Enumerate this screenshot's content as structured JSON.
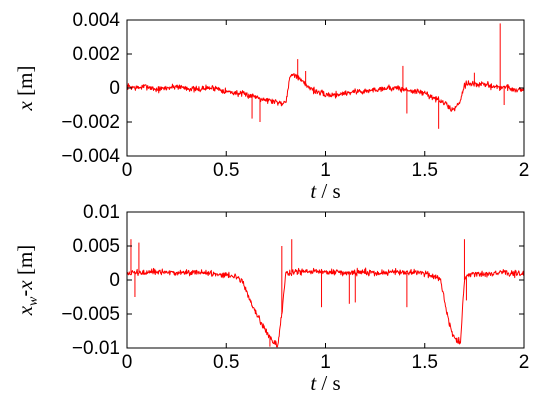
{
  "colors": {
    "series": "#ff0000",
    "axis": "#000000",
    "background": "#ffffff"
  },
  "chart_data": [
    {
      "type": "line",
      "title": "",
      "xlabel": {
        "var": "t",
        "sep": " / ",
        "unit": "s"
      },
      "ylabel": {
        "var": "x",
        "unit": " [m]"
      },
      "xlim": [
        0,
        2
      ],
      "ylim": [
        -0.004,
        0.004
      ],
      "xticks": [
        0,
        0.5,
        1,
        1.5,
        2
      ],
      "xtick_labels": [
        "0",
        "0.5",
        "1",
        "1.5",
        "2"
      ],
      "yticks": [
        0.004,
        0.002,
        0,
        -0.002,
        -0.004
      ],
      "ytick_labels": [
        "0.004",
        "0.002",
        "0",
        "−0.002",
        "−0.004"
      ],
      "grid": false,
      "series": [
        {
          "x": [
            0,
            0.05,
            0.1,
            0.15,
            0.2,
            0.25,
            0.3,
            0.35,
            0.4,
            0.45,
            0.5,
            0.55,
            0.6,
            0.65,
            0.7,
            0.75,
            0.78,
            0.8,
            0.82,
            0.84,
            0.86,
            0.9,
            0.95,
            1.0,
            1.05,
            1.1,
            1.15,
            1.2,
            1.25,
            1.3,
            1.35,
            1.4,
            1.45,
            1.5,
            1.55,
            1.6,
            1.62,
            1.64,
            1.66,
            1.68,
            1.7,
            1.72,
            1.76,
            1.8,
            1.85,
            1.88,
            1.9,
            1.95,
            2.0
          ],
          "y": [
            0.0001,
            0.0,
            0.0001,
            -0.0001,
            0.0,
            0.0001,
            0.0,
            -0.0001,
            0.0,
            0.0,
            -0.0002,
            -0.0003,
            -0.0004,
            -0.0005,
            -0.0007,
            -0.0008,
            -0.0009,
            -0.0008,
            0.0006,
            0.0009,
            0.0006,
            0.0002,
            -0.0002,
            -0.0004,
            -0.0004,
            -0.0003,
            -0.0002,
            -0.0002,
            -0.0001,
            0.0,
            0.0,
            -0.0001,
            -0.0002,
            -0.0003,
            -0.0006,
            -0.0009,
            -0.0011,
            -0.0013,
            -0.0011,
            -0.0007,
            0.0002,
            0.0003,
            0.0002,
            0.0002,
            0.0001,
            0.0,
            0.0001,
            -0.0001,
            -0.0001
          ],
          "spikes": [
            {
              "x": 0.63,
              "y": -0.0018
            },
            {
              "x": 0.67,
              "y": -0.002
            },
            {
              "x": 0.86,
              "y": 0.0017
            },
            {
              "x": 0.9,
              "y": 0.001
            },
            {
              "x": 1.39,
              "y": 0.0013
            },
            {
              "x": 1.41,
              "y": -0.0015
            },
            {
              "x": 1.57,
              "y": -0.0024
            },
            {
              "x": 1.75,
              "y": 0.0009
            },
            {
              "x": 1.88,
              "y": 0.0038
            },
            {
              "x": 1.9,
              "y": -0.001
            }
          ]
        }
      ]
    },
    {
      "type": "line",
      "title": "",
      "xlabel": {
        "var": "t",
        "sep": " / ",
        "unit": "s"
      },
      "ylabel": {
        "var": "x",
        "sub": "w",
        "op": "-",
        "var2": "x",
        "unit": " [m]"
      },
      "xlim": [
        0,
        2
      ],
      "ylim": [
        -0.01,
        0.01
      ],
      "xticks": [
        0,
        0.5,
        1,
        1.5,
        2
      ],
      "xtick_labels": [
        "0",
        "0.5",
        "1",
        "1.5",
        "2"
      ],
      "yticks": [
        0.01,
        0.005,
        0,
        -0.005,
        -0.01
      ],
      "ytick_labels": [
        "0.01",
        "0.005",
        "0",
        "−0.005",
        "−0.01"
      ],
      "grid": false,
      "series": [
        {
          "x": [
            0,
            0.05,
            0.1,
            0.15,
            0.2,
            0.25,
            0.3,
            0.35,
            0.4,
            0.45,
            0.5,
            0.55,
            0.58,
            0.6,
            0.62,
            0.65,
            0.68,
            0.7,
            0.72,
            0.74,
            0.76,
            0.78,
            0.8,
            0.85,
            0.9,
            0.95,
            1.0,
            1.05,
            1.1,
            1.15,
            1.2,
            1.25,
            1.3,
            1.35,
            1.4,
            1.45,
            1.5,
            1.55,
            1.58,
            1.6,
            1.62,
            1.64,
            1.66,
            1.68,
            1.7,
            1.72,
            1.75,
            1.8,
            1.85,
            1.9,
            1.95,
            2.0
          ],
          "y": [
            0.0009,
            0.0011,
            0.001,
            0.0012,
            0.0011,
            0.001,
            0.0011,
            0.0012,
            0.001,
            0.0009,
            0.0008,
            0.0005,
            0.0,
            -0.0015,
            -0.003,
            -0.005,
            -0.0065,
            -0.0075,
            -0.0085,
            -0.0092,
            -0.0095,
            -0.005,
            0.001,
            0.0012,
            0.0011,
            0.0013,
            0.0011,
            0.0012,
            0.001,
            0.0011,
            0.0012,
            0.001,
            0.0011,
            0.0012,
            0.001,
            0.0011,
            0.001,
            0.0006,
            0.0,
            -0.003,
            -0.006,
            -0.0078,
            -0.0088,
            -0.009,
            0.0,
            0.0008,
            0.001,
            0.0008,
            0.001,
            0.0011,
            0.0009,
            0.0009
          ],
          "spikes": [
            {
              "x": 0.02,
              "y": 0.006
            },
            {
              "x": 0.04,
              "y": -0.0025
            },
            {
              "x": 0.06,
              "y": 0.0055
            },
            {
              "x": 0.72,
              "y": -0.0098
            },
            {
              "x": 0.78,
              "y": 0.005
            },
            {
              "x": 0.83,
              "y": 0.006
            },
            {
              "x": 0.98,
              "y": -0.004
            },
            {
              "x": 1.12,
              "y": -0.0035
            },
            {
              "x": 1.15,
              "y": -0.0033
            },
            {
              "x": 1.41,
              "y": -0.004
            },
            {
              "x": 1.7,
              "y": 0.006
            },
            {
              "x": 1.71,
              "y": -0.003
            }
          ]
        }
      ]
    }
  ]
}
